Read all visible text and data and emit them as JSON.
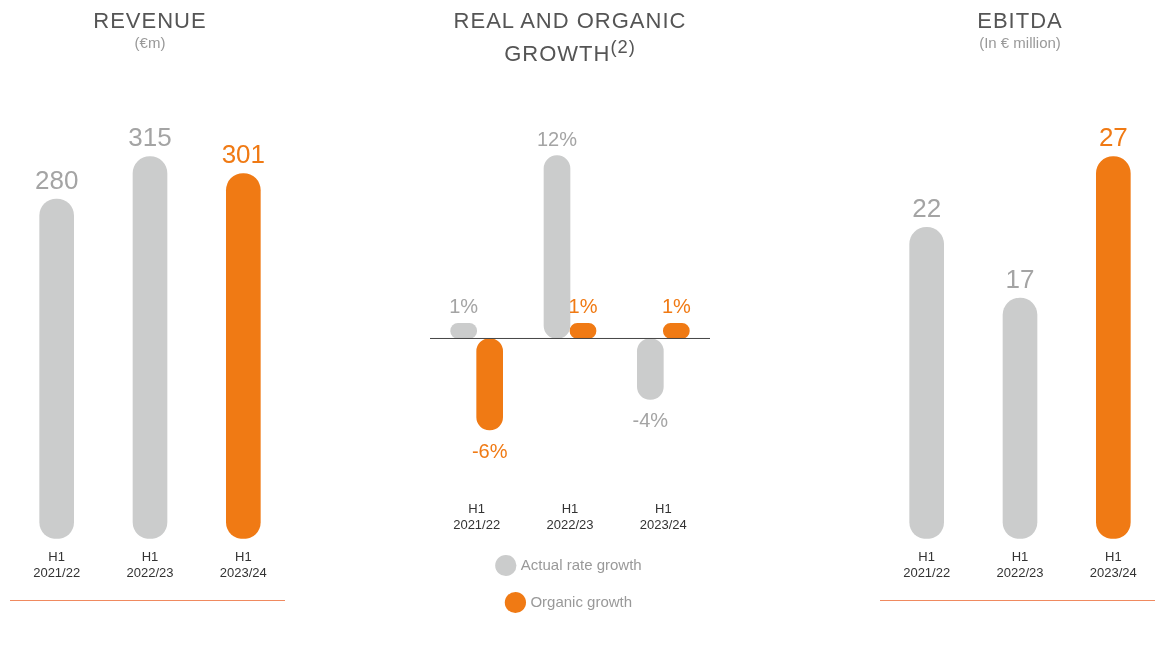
{
  "chart_data": [
    {
      "type": "bar",
      "title": "REVENUE",
      "subtitle": "(€m)",
      "categories": [
        "H1 2021/22",
        "H1 2022/23",
        "H1 2023/24"
      ],
      "values": [
        280,
        315,
        301
      ],
      "colors": [
        "#cbcccc",
        "#cbcccc",
        "#f07a14"
      ],
      "data_labels": true
    },
    {
      "type": "bar",
      "title": "REAL AND ORGANIC GROWTH$^{(2)}$",
      "categories": [
        "H1 2021/22",
        "H1 2022/23",
        "H1 2023/24"
      ],
      "series": [
        {
          "name": "Actual rate growth",
          "color": "#cbcccc",
          "values": [
            1,
            12,
            -4
          ],
          "value_labels": [
            "1%",
            "12%",
            "-4%"
          ]
        },
        {
          "name": "Organic growth",
          "color": "#f07a14",
          "values": [
            -6,
            1,
            1
          ],
          "value_labels": [
            "-6%",
            "1%",
            "1%"
          ]
        }
      ],
      "legend": "bottom"
    },
    {
      "type": "bar",
      "title": "EBITDA",
      "subtitle": "(In € million)",
      "categories": [
        "H1 2021/22",
        "H1 2022/23",
        "H1 2023/24"
      ],
      "values": [
        22,
        17,
        27
      ],
      "colors": [
        "#cbcccc",
        "#cbcccc",
        "#f07a14"
      ],
      "data_labels": true
    }
  ]
}
